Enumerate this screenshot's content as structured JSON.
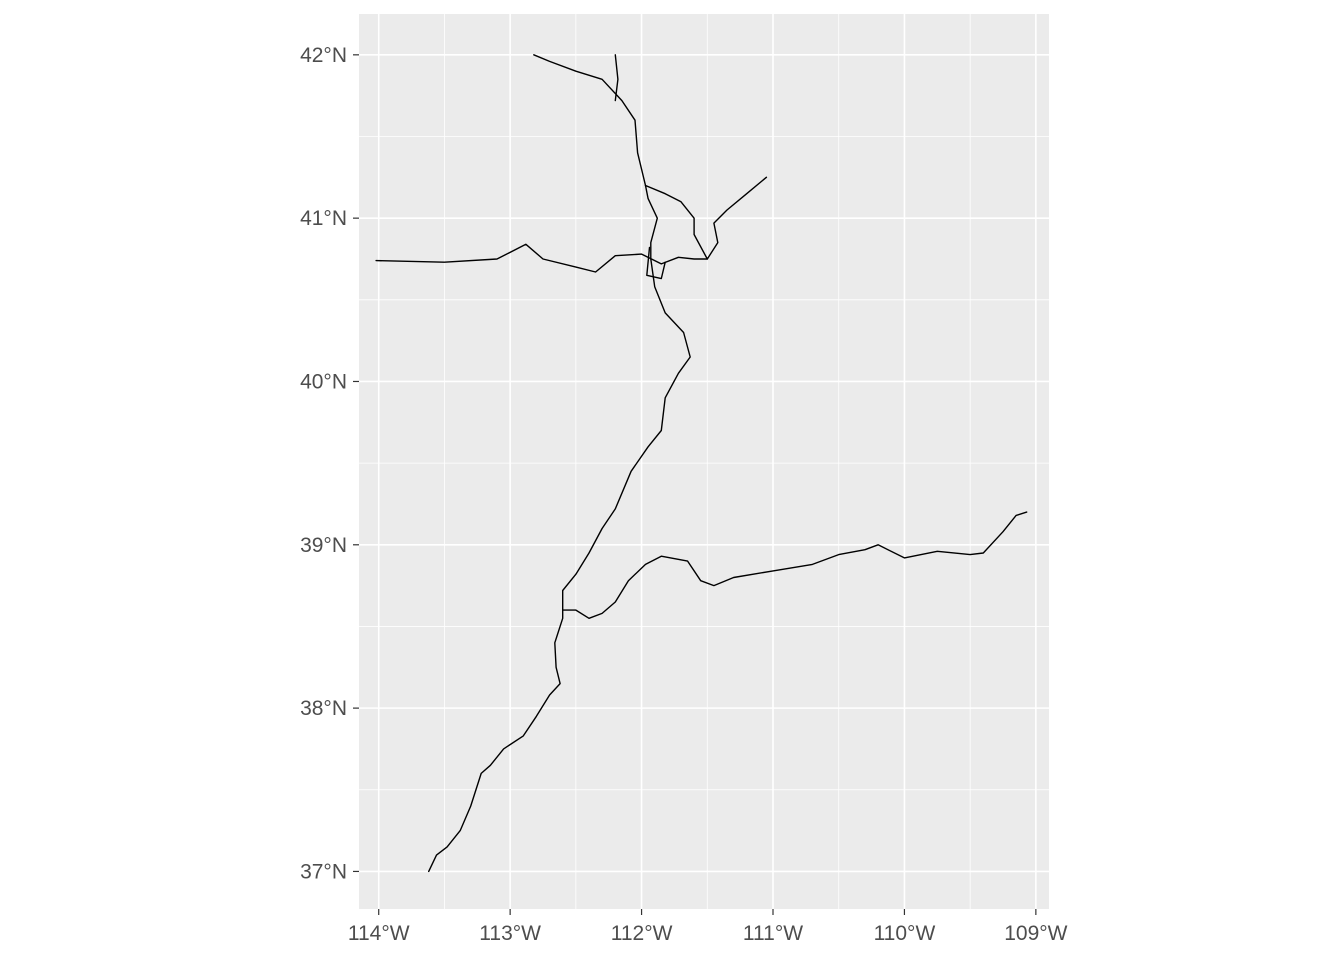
{
  "chart_data": {
    "type": "map",
    "projection": "geographic (longitude/latitude)",
    "xlim": [
      -114.15,
      -108.9
    ],
    "ylim": [
      36.77,
      42.25
    ],
    "grid": true,
    "background": "#ebebeb",
    "gridline_color": "#ffffff",
    "line_color": "#000000",
    "x_ticks": [
      {
        "value": -114,
        "label": "114°W"
      },
      {
        "value": -113,
        "label": "113°W"
      },
      {
        "value": -112,
        "label": "112°W"
      },
      {
        "value": -111,
        "label": "111°W"
      },
      {
        "value": -110,
        "label": "110°W"
      },
      {
        "value": -109,
        "label": "109°W"
      }
    ],
    "y_ticks": [
      {
        "value": 42,
        "label": "42°N"
      },
      {
        "value": 41,
        "label": "41°N"
      },
      {
        "value": 40,
        "label": "40°N"
      },
      {
        "value": 39,
        "label": "39°N"
      },
      {
        "value": 38,
        "label": "38°N"
      },
      {
        "value": 37,
        "label": "37°N"
      }
    ],
    "lines": [
      {
        "coords": [
          [
            -113.62,
            37.0
          ],
          [
            -113.56,
            37.1
          ],
          [
            -113.48,
            37.15
          ],
          [
            -113.38,
            37.25
          ],
          [
            -113.3,
            37.4
          ],
          [
            -113.22,
            37.6
          ],
          [
            -113.15,
            37.65
          ],
          [
            -113.05,
            37.75
          ],
          [
            -112.9,
            37.83
          ],
          [
            -112.8,
            37.95
          ],
          [
            -112.7,
            38.08
          ],
          [
            -112.62,
            38.15
          ],
          [
            -112.65,
            38.25
          ],
          [
            -112.66,
            38.4
          ],
          [
            -112.6,
            38.55
          ],
          [
            -112.6,
            38.72
          ],
          [
            -112.5,
            38.82
          ],
          [
            -112.4,
            38.95
          ],
          [
            -112.3,
            39.1
          ],
          [
            -112.2,
            39.22
          ],
          [
            -112.08,
            39.45
          ],
          [
            -111.95,
            39.6
          ],
          [
            -111.85,
            39.7
          ],
          [
            -111.82,
            39.9
          ],
          [
            -111.72,
            40.05
          ],
          [
            -111.63,
            40.15
          ],
          [
            -111.68,
            40.3
          ],
          [
            -111.82,
            40.42
          ],
          [
            -111.9,
            40.58
          ],
          [
            -111.93,
            40.75
          ],
          [
            -111.93,
            40.85
          ],
          [
            -111.88,
            41.0
          ],
          [
            -111.95,
            41.12
          ],
          [
            -111.97,
            41.2
          ],
          [
            -112.03,
            41.4
          ],
          [
            -112.05,
            41.6
          ],
          [
            -112.15,
            41.72
          ],
          [
            -112.3,
            41.85
          ],
          [
            -112.5,
            41.9
          ],
          [
            -112.7,
            41.96
          ],
          [
            -112.82,
            42.0
          ]
        ]
      },
      {
        "coords": [
          [
            -112.2,
            42.0
          ],
          [
            -112.18,
            41.85
          ],
          [
            -112.2,
            41.72
          ]
        ]
      },
      {
        "coords": [
          [
            -111.97,
            41.2
          ],
          [
            -111.82,
            41.15
          ],
          [
            -111.7,
            41.1
          ],
          [
            -111.6,
            41.0
          ],
          [
            -111.6,
            40.9
          ],
          [
            -111.5,
            40.75
          ],
          [
            -111.42,
            40.85
          ],
          [
            -111.45,
            40.97
          ],
          [
            -111.35,
            41.05
          ],
          [
            -111.2,
            41.15
          ],
          [
            -111.05,
            41.25
          ]
        ]
      },
      {
        "coords": [
          [
            -114.02,
            40.74
          ],
          [
            -113.5,
            40.73
          ],
          [
            -113.1,
            40.75
          ],
          [
            -112.88,
            40.84
          ],
          [
            -112.75,
            40.75
          ],
          [
            -112.5,
            40.7
          ],
          [
            -112.35,
            40.67
          ],
          [
            -112.2,
            40.77
          ],
          [
            -112.0,
            40.78
          ],
          [
            -111.85,
            40.72
          ],
          [
            -111.72,
            40.76
          ],
          [
            -111.6,
            40.75
          ],
          [
            -111.5,
            40.75
          ]
        ]
      },
      {
        "coords": [
          [
            -111.94,
            40.82
          ],
          [
            -111.96,
            40.65
          ],
          [
            -111.85,
            40.63
          ],
          [
            -111.82,
            40.73
          ]
        ]
      },
      {
        "coords": [
          [
            -112.6,
            38.6
          ],
          [
            -112.5,
            38.6
          ],
          [
            -112.4,
            38.55
          ],
          [
            -112.3,
            38.58
          ],
          [
            -112.2,
            38.65
          ],
          [
            -112.1,
            38.78
          ],
          [
            -111.97,
            38.88
          ],
          [
            -111.85,
            38.93
          ],
          [
            -111.65,
            38.9
          ],
          [
            -111.55,
            38.78
          ],
          [
            -111.45,
            38.75
          ],
          [
            -111.3,
            38.8
          ],
          [
            -111.0,
            38.84
          ],
          [
            -110.7,
            38.88
          ],
          [
            -110.5,
            38.94
          ],
          [
            -110.3,
            38.97
          ],
          [
            -110.2,
            39.0
          ],
          [
            -110.0,
            38.92
          ],
          [
            -109.75,
            38.96
          ],
          [
            -109.5,
            38.94
          ],
          [
            -109.4,
            38.95
          ],
          [
            -109.25,
            39.08
          ],
          [
            -109.15,
            39.18
          ],
          [
            -109.07,
            39.2
          ]
        ]
      }
    ]
  }
}
